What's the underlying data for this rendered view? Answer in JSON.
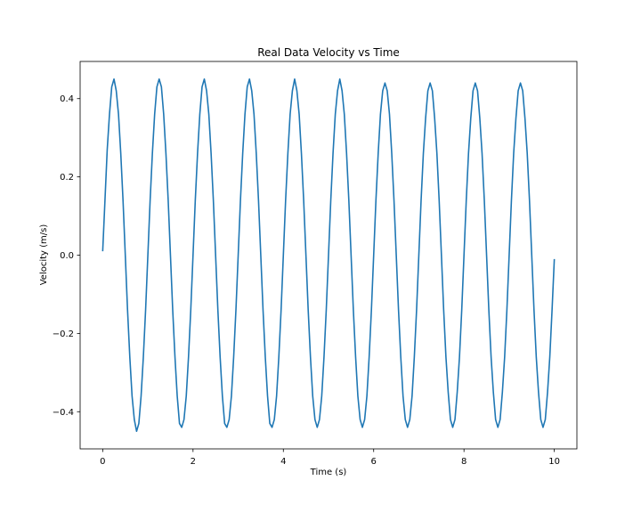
{
  "chart_data": {
    "type": "line",
    "title": "Real Data Velocity vs Time",
    "xlabel": "Time (s)",
    "ylabel": "Velocity (m/s)",
    "xlim": [
      -0.5,
      10.5
    ],
    "ylim": [
      -0.495,
      0.495
    ],
    "grid": false,
    "legend": "none",
    "x_ticks": [
      0,
      2,
      4,
      6,
      8,
      10
    ],
    "x_tick_labels": [
      "0",
      "2",
      "4",
      "6",
      "8",
      "10"
    ],
    "y_ticks": [
      0.4,
      0.2,
      0.0,
      -0.2,
      -0.4
    ],
    "y_tick_labels": [
      "0.4",
      "0.2",
      "0.0",
      "−0.2",
      "−0.4"
    ],
    "line_color": "#1f77b4",
    "series": [
      {
        "name": "",
        "x": [
          0,
          0.05,
          0.1,
          0.15,
          0.2,
          0.25,
          0.3,
          0.35,
          0.4,
          0.45,
          0.5,
          0.55,
          0.6,
          0.65,
          0.7,
          0.75,
          0.8,
          0.85,
          0.9,
          0.95,
          1.0,
          1.05,
          1.1,
          1.15,
          1.2,
          1.25,
          1.3,
          1.35,
          1.4,
          1.45,
          1.5,
          1.55,
          1.6,
          1.65,
          1.7,
          1.75,
          1.8,
          1.85,
          1.9,
          1.95,
          2.0,
          2.05,
          2.1,
          2.15,
          2.2,
          2.25,
          2.3,
          2.35,
          2.4,
          2.45,
          2.5,
          2.55,
          2.6,
          2.65,
          2.7,
          2.75,
          2.8,
          2.85,
          2.9,
          2.95,
          3.0,
          3.05,
          3.1,
          3.15,
          3.2,
          3.25,
          3.3,
          3.35,
          3.4,
          3.45,
          3.5,
          3.55,
          3.6,
          3.65,
          3.7,
          3.75,
          3.8,
          3.85,
          3.9,
          3.95,
          4.0,
          4.05,
          4.1,
          4.15,
          4.2,
          4.25,
          4.3,
          4.35,
          4.4,
          4.45,
          4.5,
          4.55,
          4.6,
          4.65,
          4.7,
          4.75,
          4.8,
          4.85,
          4.9,
          4.95,
          5.0,
          5.05,
          5.1,
          5.15,
          5.2,
          5.25,
          5.3,
          5.35,
          5.4,
          5.45,
          5.5,
          5.55,
          5.6,
          5.65,
          5.7,
          5.75,
          5.8,
          5.85,
          5.9,
          5.95,
          6.0,
          6.05,
          6.1,
          6.15,
          6.2,
          6.25,
          6.3,
          6.35,
          6.4,
          6.45,
          6.5,
          6.55,
          6.6,
          6.65,
          6.7,
          6.75,
          6.8,
          6.85,
          6.9,
          6.95,
          7.0,
          7.05,
          7.1,
          7.15,
          7.2,
          7.25,
          7.3,
          7.35,
          7.4,
          7.45,
          7.5,
          7.55,
          7.6,
          7.65,
          7.7,
          7.75,
          7.8,
          7.85,
          7.9,
          7.95,
          8.0,
          8.05,
          8.1,
          8.15,
          8.2,
          8.25,
          8.3,
          8.35,
          8.4,
          8.45,
          8.5,
          8.55,
          8.6,
          8.65,
          8.7,
          8.75,
          8.8,
          8.85,
          8.9,
          8.95,
          9.0,
          9.05,
          9.1,
          9.15,
          9.2,
          9.25,
          9.3,
          9.35,
          9.4,
          9.45,
          9.5,
          9.55,
          9.6,
          9.65,
          9.7,
          9.75,
          9.8,
          9.85,
          9.9,
          9.95,
          10.0
        ],
        "y": [
          0.01,
          0.14,
          0.27,
          0.36,
          0.43,
          0.45,
          0.42,
          0.36,
          0.26,
          0.14,
          0.0,
          -0.14,
          -0.26,
          -0.36,
          -0.42,
          -0.45,
          -0.43,
          -0.36,
          -0.26,
          -0.14,
          0.0,
          0.14,
          0.26,
          0.36,
          0.43,
          0.45,
          0.43,
          0.36,
          0.26,
          0.14,
          0.0,
          -0.14,
          -0.26,
          -0.36,
          -0.43,
          -0.44,
          -0.42,
          -0.36,
          -0.26,
          -0.14,
          0.0,
          0.14,
          0.26,
          0.36,
          0.43,
          0.45,
          0.42,
          0.36,
          0.26,
          0.14,
          0.0,
          -0.14,
          -0.26,
          -0.36,
          -0.43,
          -0.44,
          -0.42,
          -0.36,
          -0.26,
          -0.14,
          0.0,
          0.14,
          0.26,
          0.36,
          0.43,
          0.45,
          0.42,
          0.36,
          0.26,
          0.14,
          0.0,
          -0.14,
          -0.26,
          -0.36,
          -0.43,
          -0.44,
          -0.42,
          -0.36,
          -0.26,
          -0.14,
          0.0,
          0.14,
          0.26,
          0.36,
          0.42,
          0.45,
          0.42,
          0.36,
          0.26,
          0.14,
          0.0,
          -0.14,
          -0.26,
          -0.36,
          -0.42,
          -0.44,
          -0.42,
          -0.36,
          -0.26,
          -0.14,
          0.0,
          0.14,
          0.26,
          0.36,
          0.42,
          0.45,
          0.42,
          0.36,
          0.26,
          0.14,
          0.0,
          -0.14,
          -0.26,
          -0.36,
          -0.42,
          -0.44,
          -0.42,
          -0.36,
          -0.26,
          -0.14,
          0.0,
          0.14,
          0.26,
          0.36,
          0.42,
          0.44,
          0.42,
          0.36,
          0.26,
          0.14,
          0.0,
          -0.14,
          -0.26,
          -0.36,
          -0.42,
          -0.44,
          -0.42,
          -0.36,
          -0.26,
          -0.14,
          0.0,
          0.14,
          0.26,
          0.35,
          0.42,
          0.44,
          0.42,
          0.35,
          0.26,
          0.14,
          0.0,
          -0.14,
          -0.26,
          -0.35,
          -0.42,
          -0.44,
          -0.42,
          -0.35,
          -0.26,
          -0.14,
          0.0,
          0.14,
          0.26,
          0.35,
          0.42,
          0.44,
          0.42,
          0.35,
          0.26,
          0.14,
          0.0,
          -0.14,
          -0.26,
          -0.35,
          -0.42,
          -0.44,
          -0.42,
          -0.35,
          -0.26,
          -0.14,
          0.0,
          0.14,
          0.26,
          0.35,
          0.42,
          0.44,
          0.42,
          0.35,
          0.26,
          0.14,
          0.0,
          -0.14,
          -0.26,
          -0.35,
          -0.42,
          -0.44,
          -0.42,
          -0.35,
          -0.26,
          -0.14,
          -0.01
        ]
      }
    ]
  }
}
